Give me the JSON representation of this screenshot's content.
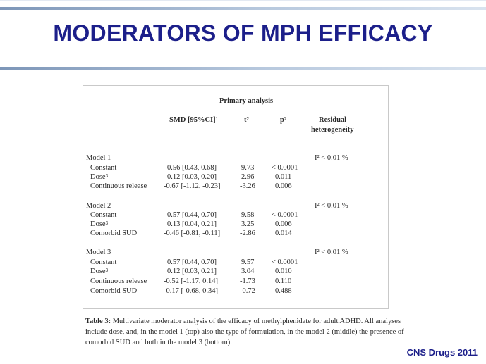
{
  "slide": {
    "title": "MODERATORS OF MPH EFFICACY",
    "citation": "CNS Drugs 2011",
    "title_color": "#1c1f8a"
  },
  "table": {
    "group_header": "Primary analysis",
    "columns": {
      "smd": "SMD [95%CI]",
      "smd_sup": "1",
      "t": "t",
      "t_sup": "2",
      "p": "p",
      "p_sup": "2",
      "residual_line1": "Residual",
      "residual_line2": "heterogeneity"
    },
    "models": [
      {
        "name": "Model 1",
        "heterogeneity": "I² < 0.01 %",
        "rows": [
          {
            "label": "Constant",
            "sup": "",
            "smd": "0.56 [0.43, 0.68]",
            "t": "9.73",
            "p": "< 0.0001"
          },
          {
            "label": "Dose",
            "sup": "3",
            "smd": "0.12 [0.03, 0.20]",
            "t": "2.96",
            "p": "0.011"
          },
          {
            "label": "Continuous release",
            "sup": "",
            "smd": "-0.67 [-1.12, -0.23]",
            "t": "-3.26",
            "p": "0.006"
          }
        ]
      },
      {
        "name": "Model 2",
        "heterogeneity": "I² < 0.01 %",
        "rows": [
          {
            "label": "Constant",
            "sup": "",
            "smd": "0.57 [0.44, 0.70]",
            "t": "9.58",
            "p": "< 0.0001"
          },
          {
            "label": "Dose",
            "sup": "3",
            "smd": "0.13 [0.04, 0.21]",
            "t": "3.25",
            "p": "0.006"
          },
          {
            "label": "Comorbid SUD",
            "sup": "",
            "smd": "-0.46 [-0.81, -0.11]",
            "t": "-2.86",
            "p": "0.014"
          }
        ]
      },
      {
        "name": "Model 3",
        "heterogeneity": "I² < 0.01 %",
        "rows": [
          {
            "label": "Constant",
            "sup": "",
            "smd": "0.57 [0.44, 0.70]",
            "t": "9.57",
            "p": "< 0.0001"
          },
          {
            "label": "Dose",
            "sup": "3",
            "smd": "0.12 [0.03, 0.21]",
            "t": "3.04",
            "p": "0.010"
          },
          {
            "label": "Continuous release",
            "sup": "",
            "smd": "-0.52 [-1.17, 0.14]",
            "t": "-1.73",
            "p": "0.110"
          },
          {
            "label": "Comorbid SUD",
            "sup": "",
            "smd": "-0.17 [-0.68, 0.34]",
            "t": "-0.72",
            "p": "0.488"
          }
        ]
      }
    ]
  },
  "caption": {
    "label": "Table 3:",
    "text": " Multivariate moderator analysis of the efficacy of methylphenidate for adult ADHD. All analyses include dose, and, in the model 1 (top) also the type of formulation, in the model 2 (middle) the presence of comorbid SUD and both in the model 3 (bottom)."
  }
}
